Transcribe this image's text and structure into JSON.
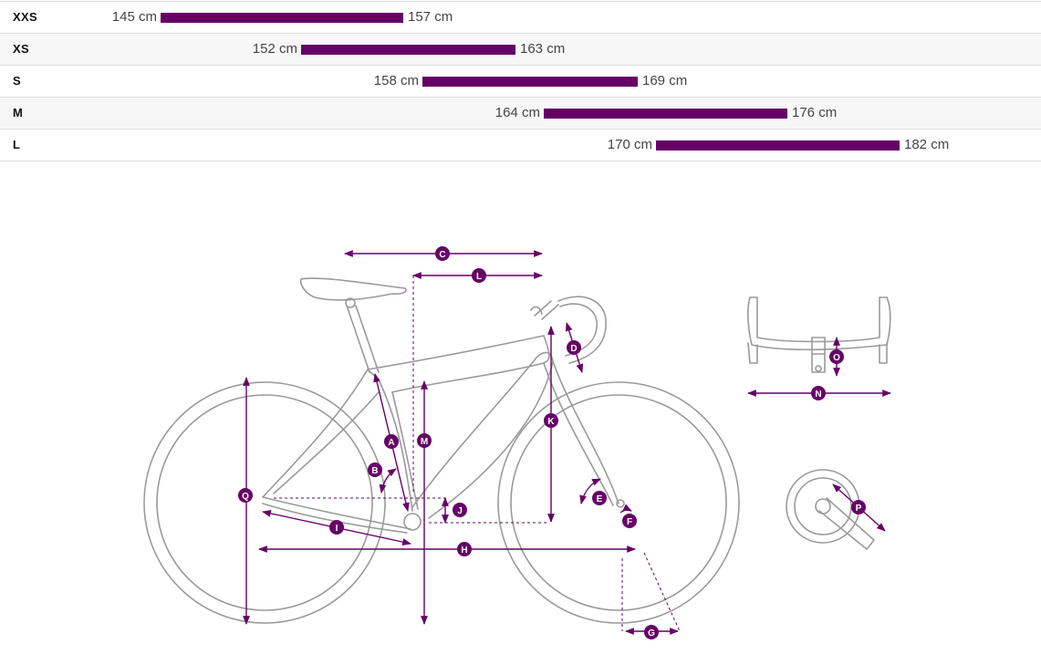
{
  "colors": {
    "accent": "#660066",
    "line_art": "#9a9a9a",
    "row_alt": "#f7f7f7",
    "row_border": "#dddddd"
  },
  "size_chart": {
    "rows": [
      {
        "size": "XXS",
        "min_cm": 145,
        "max_cm": 157,
        "min_label": "145 cm",
        "max_label": "157 cm"
      },
      {
        "size": "XS",
        "min_cm": 152,
        "max_cm": 163,
        "min_label": "152 cm",
        "max_label": "163 cm"
      },
      {
        "size": "S",
        "min_cm": 158,
        "max_cm": 169,
        "min_label": "158 cm",
        "max_label": "169 cm"
      },
      {
        "size": "M",
        "min_cm": 164,
        "max_cm": 176,
        "min_label": "164 cm",
        "max_label": "176 cm"
      },
      {
        "size": "L",
        "min_cm": 170,
        "max_cm": 182,
        "min_label": "170 cm",
        "max_label": "182 cm"
      }
    ]
  },
  "geometry": {
    "labels": {
      "A": "A",
      "B": "B",
      "C": "C",
      "D": "D",
      "E": "E",
      "F": "F",
      "G": "G",
      "H": "H",
      "I": "I",
      "J": "J",
      "K": "K",
      "L": "L",
      "M": "M",
      "N": "N",
      "O": "O",
      "P": "P",
      "Q": "Q"
    }
  }
}
